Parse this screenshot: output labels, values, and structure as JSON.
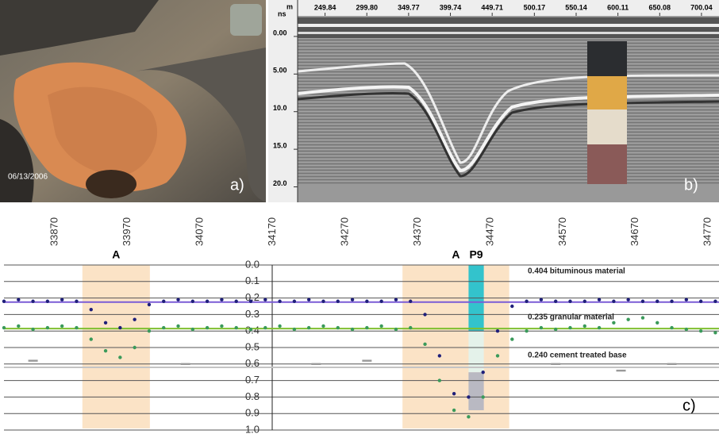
{
  "photo": {
    "date": "06/13/2006",
    "label": "a)"
  },
  "radargram": {
    "x_unit": "m",
    "y_unit": "ns",
    "label": "b)",
    "xlim": [
      217,
      721
    ],
    "ylim": [
      -4,
      21
    ],
    "xticks": [
      249.84,
      {
        "value": 299.8,
        "label": "299.80"
      },
      349.77,
      399.74,
      449.71,
      500.17,
      550.14,
      600.11,
      650.08,
      700.04
    ],
    "yticks": [
      {
        "value": 0,
        "label": "0.00"
      },
      {
        "value": 5,
        "label": "5.00"
      },
      {
        "value": 10,
        "label": "10.0"
      },
      {
        "value": 15,
        "label": "15.0"
      },
      {
        "value": 20,
        "label": "20.0"
      }
    ]
  },
  "chart_data": {
    "type": "scatter",
    "label": "c)",
    "xlim": [
      33800,
      34785
    ],
    "ylim": [
      0,
      1
    ],
    "y_inverted": true,
    "grid": true,
    "xticks": [
      33870,
      33970,
      34070,
      34170,
      34270,
      34370,
      34470,
      34570,
      34670,
      34770
    ],
    "yticks": [
      {
        "value": 0,
        "label": "0.0"
      },
      0.1,
      0.2,
      0.3,
      0.4,
      0.5,
      0.6,
      0.7,
      0.8,
      0.9,
      {
        "value": 1,
        "label": "1.0"
      }
    ],
    "regions": [
      {
        "label": "A",
        "x": [
          33908,
          34001
        ],
        "y": [
          0,
          0.99
        ],
        "color": "#fbe3c6"
      },
      {
        "label": "A",
        "x": [
          34349,
          34496
        ],
        "y": [
          0,
          0.99
        ],
        "color": "#fbe3c6"
      }
    ],
    "core": {
      "label": "P9",
      "x": [
        34440,
        34461
      ],
      "layers": [
        {
          "y": [
            0,
            0.4
          ],
          "color": "#33c3cc"
        },
        {
          "y": [
            0.4,
            0.65
          ],
          "color": "#e4f2ea"
        },
        {
          "y": [
            0.65,
            0.88
          ],
          "color": "#b9b9c2"
        }
      ]
    },
    "layers": [
      {
        "label": "0.404 bituminous material",
        "y": 0.225,
        "color": "#7b5cd6"
      },
      {
        "label": "0.235 granular material",
        "y": 0.385,
        "color": "#7fbf2f"
      },
      {
        "label": "0.240 cement treated base",
        "y": 0.62,
        "color": "#c4c4c4"
      }
    ],
    "series": [
      {
        "color": "#1f1f7a",
        "x": [
          33800,
          33820,
          33840,
          33860,
          33880,
          33900,
          33920,
          33940,
          33960,
          33980,
          34000,
          34020,
          34040,
          34060,
          34080,
          34100,
          34120,
          34140,
          34160,
          34180,
          34200,
          34220,
          34240,
          34260,
          34280,
          34300,
          34320,
          34340,
          34360,
          34380,
          34400,
          34420,
          34440,
          34460,
          34480,
          34500,
          34520,
          34540,
          34560,
          34580,
          34600,
          34620,
          34640,
          34660,
          34680,
          34700,
          34720,
          34740,
          34760,
          34780
        ],
        "values": [
          0.22,
          0.21,
          0.22,
          0.22,
          0.21,
          0.22,
          0.27,
          0.35,
          0.38,
          0.33,
          0.24,
          0.22,
          0.21,
          0.22,
          0.22,
          0.21,
          0.22,
          0.22,
          0.21,
          0.22,
          0.22,
          0.21,
          0.22,
          0.22,
          0.21,
          0.22,
          0.22,
          0.21,
          0.22,
          0.3,
          0.55,
          0.78,
          0.8,
          0.65,
          0.4,
          0.25,
          0.22,
          0.21,
          0.22,
          0.22,
          0.22,
          0.21,
          0.22,
          0.21,
          0.22,
          0.22,
          0.22,
          0.21,
          0.22,
          0.22
        ]
      },
      {
        "color": "#3a9a5a",
        "x": [
          33800,
          33820,
          33840,
          33860,
          33880,
          33900,
          33920,
          33940,
          33960,
          33980,
          34000,
          34020,
          34040,
          34060,
          34080,
          34100,
          34120,
          34140,
          34160,
          34180,
          34200,
          34220,
          34240,
          34260,
          34280,
          34300,
          34320,
          34340,
          34360,
          34380,
          34400,
          34420,
          34440,
          34460,
          34480,
          34500,
          34520,
          34540,
          34560,
          34580,
          34600,
          34620,
          34640,
          34660,
          34680,
          34700,
          34720,
          34740,
          34760,
          34780
        ],
        "values": [
          0.38,
          0.37,
          0.39,
          0.38,
          0.37,
          0.38,
          0.45,
          0.52,
          0.56,
          0.5,
          0.4,
          0.38,
          0.37,
          0.39,
          0.38,
          0.37,
          0.38,
          0.39,
          0.38,
          0.37,
          0.39,
          0.38,
          0.37,
          0.38,
          0.39,
          0.38,
          0.37,
          0.39,
          0.38,
          0.48,
          0.7,
          0.88,
          0.92,
          0.8,
          0.55,
          0.45,
          0.4,
          0.38,
          0.39,
          0.38,
          0.37,
          0.38,
          0.35,
          0.33,
          0.32,
          0.35,
          0.38,
          0.39,
          0.4,
          0.41
        ]
      },
      {
        "color": "#999999",
        "x": [
          33840,
          34050,
          34230,
          34300,
          34560,
          34650,
          34720
        ],
        "values": [
          0.58,
          0.6,
          0.6,
          0.58,
          0.6,
          0.64,
          0.6
        ]
      }
    ]
  }
}
